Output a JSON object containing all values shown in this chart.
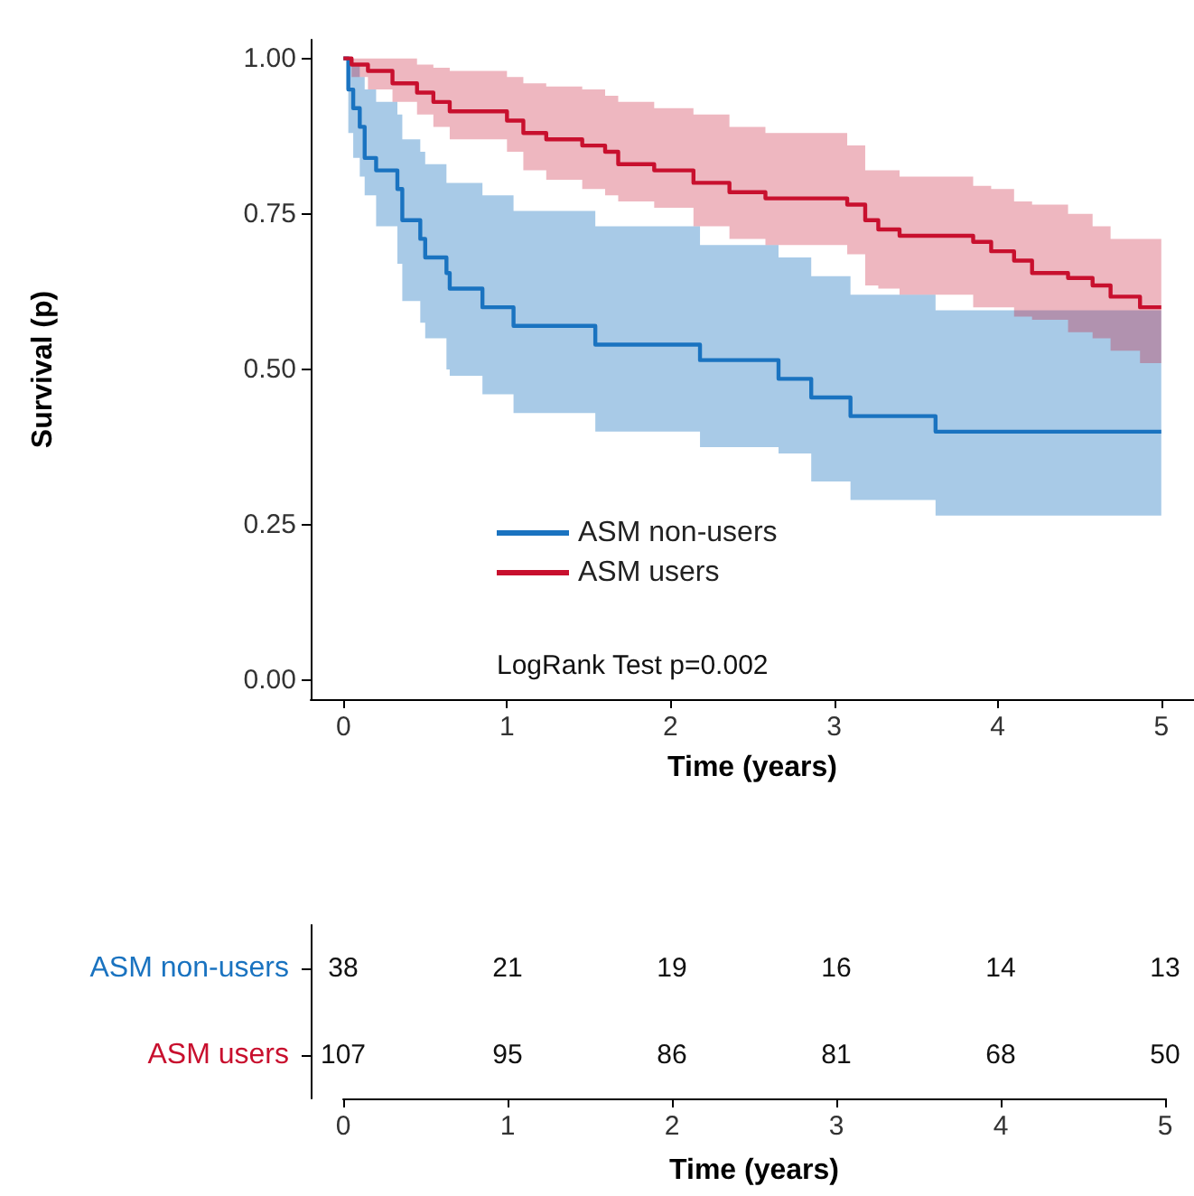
{
  "chart_data": [
    {
      "type": "step",
      "xlabel": "Time (years)",
      "ylabel": "Survival (p)",
      "xlim": [
        -0.2,
        5.2
      ],
      "xticks": [
        0,
        1,
        2,
        3,
        4,
        5
      ],
      "ylim": [
        -0.03,
        1.03
      ],
      "yticks": [
        {
          "value": 0,
          "label": "0.00"
        },
        {
          "value": 0.25,
          "label": "0.25"
        },
        {
          "value": 0.5,
          "label": "0.50"
        },
        {
          "value": 0.75,
          "label": "0.75"
        },
        {
          "value": 1,
          "label": "1.00"
        }
      ],
      "grid": false,
      "legend": "bottom",
      "annotations": [
        "LogRank Test p=0.002"
      ],
      "series": [
        {
          "name": "ASM non-users",
          "color": "#1a73c0",
          "x": [
            0,
            0.03,
            0.06,
            0.1,
            0.13,
            0.2,
            0.33,
            0.36,
            0.47,
            0.5,
            0.63,
            0.65,
            0.85,
            1.04,
            1.54,
            2.18,
            2.66,
            2.86,
            3.1,
            3.62,
            5
          ],
          "values": [
            1,
            0.95,
            0.92,
            0.89,
            0.84,
            0.82,
            0.79,
            0.74,
            0.71,
            0.68,
            0.655,
            0.63,
            0.6,
            0.57,
            0.54,
            0.515,
            0.485,
            0.455,
            0.425,
            0.4,
            0.4
          ],
          "upper": [
            1,
            1,
            0.99,
            0.97,
            0.95,
            0.93,
            0.91,
            0.87,
            0.85,
            0.83,
            0.8,
            0.8,
            0.78,
            0.755,
            0.73,
            0.7,
            0.68,
            0.65,
            0.62,
            0.595,
            0.595
          ],
          "lower": [
            1,
            0.88,
            0.84,
            0.81,
            0.78,
            0.73,
            0.67,
            0.61,
            0.575,
            0.55,
            0.5,
            0.49,
            0.46,
            0.43,
            0.4,
            0.375,
            0.365,
            0.32,
            0.29,
            0.265,
            0.265
          ]
        },
        {
          "name": "ASM users",
          "color": "#c8102e",
          "x": [
            0,
            0.05,
            0.15,
            0.3,
            0.45,
            0.55,
            0.65,
            1.0,
            1.1,
            1.24,
            1.46,
            1.6,
            1.68,
            1.9,
            2.14,
            2.36,
            2.58,
            3.08,
            3.19,
            3.27,
            3.4,
            3.85,
            3.96,
            4.1,
            4.21,
            4.43,
            4.58,
            4.69,
            4.87,
            5
          ],
          "values": [
            1,
            0.99,
            0.98,
            0.96,
            0.945,
            0.93,
            0.915,
            0.9,
            0.88,
            0.87,
            0.86,
            0.85,
            0.83,
            0.82,
            0.8,
            0.785,
            0.775,
            0.765,
            0.74,
            0.725,
            0.715,
            0.705,
            0.69,
            0.675,
            0.655,
            0.647,
            0.635,
            0.617,
            0.6,
            0.6
          ],
          "upper": [
            1,
            1,
            1,
            1,
            0.99,
            0.985,
            0.98,
            0.97,
            0.96,
            0.955,
            0.95,
            0.94,
            0.93,
            0.92,
            0.91,
            0.89,
            0.88,
            0.86,
            0.82,
            0.82,
            0.81,
            0.795,
            0.79,
            0.77,
            0.765,
            0.75,
            0.73,
            0.71,
            0.71,
            0.71
          ],
          "lower": [
            1,
            0.97,
            0.95,
            0.93,
            0.91,
            0.89,
            0.87,
            0.85,
            0.82,
            0.805,
            0.79,
            0.78,
            0.77,
            0.76,
            0.73,
            0.71,
            0.7,
            0.685,
            0.635,
            0.63,
            0.62,
            0.6,
            0.6,
            0.585,
            0.58,
            0.56,
            0.55,
            0.53,
            0.51,
            0.51
          ]
        }
      ]
    },
    {
      "type": "heatmap",
      "xlabel": "Time (years)",
      "categories": [
        "0",
        "1",
        "2",
        "3",
        "4",
        "5"
      ],
      "y_categories": [
        "ASM non-users",
        "ASM users"
      ],
      "colors": [
        "#1a73c0",
        "#c8102e"
      ],
      "data_labels": true,
      "cells": [
        [
          38,
          21,
          19,
          16,
          14,
          13
        ],
        [
          107,
          95,
          86,
          81,
          68,
          50
        ]
      ]
    }
  ]
}
